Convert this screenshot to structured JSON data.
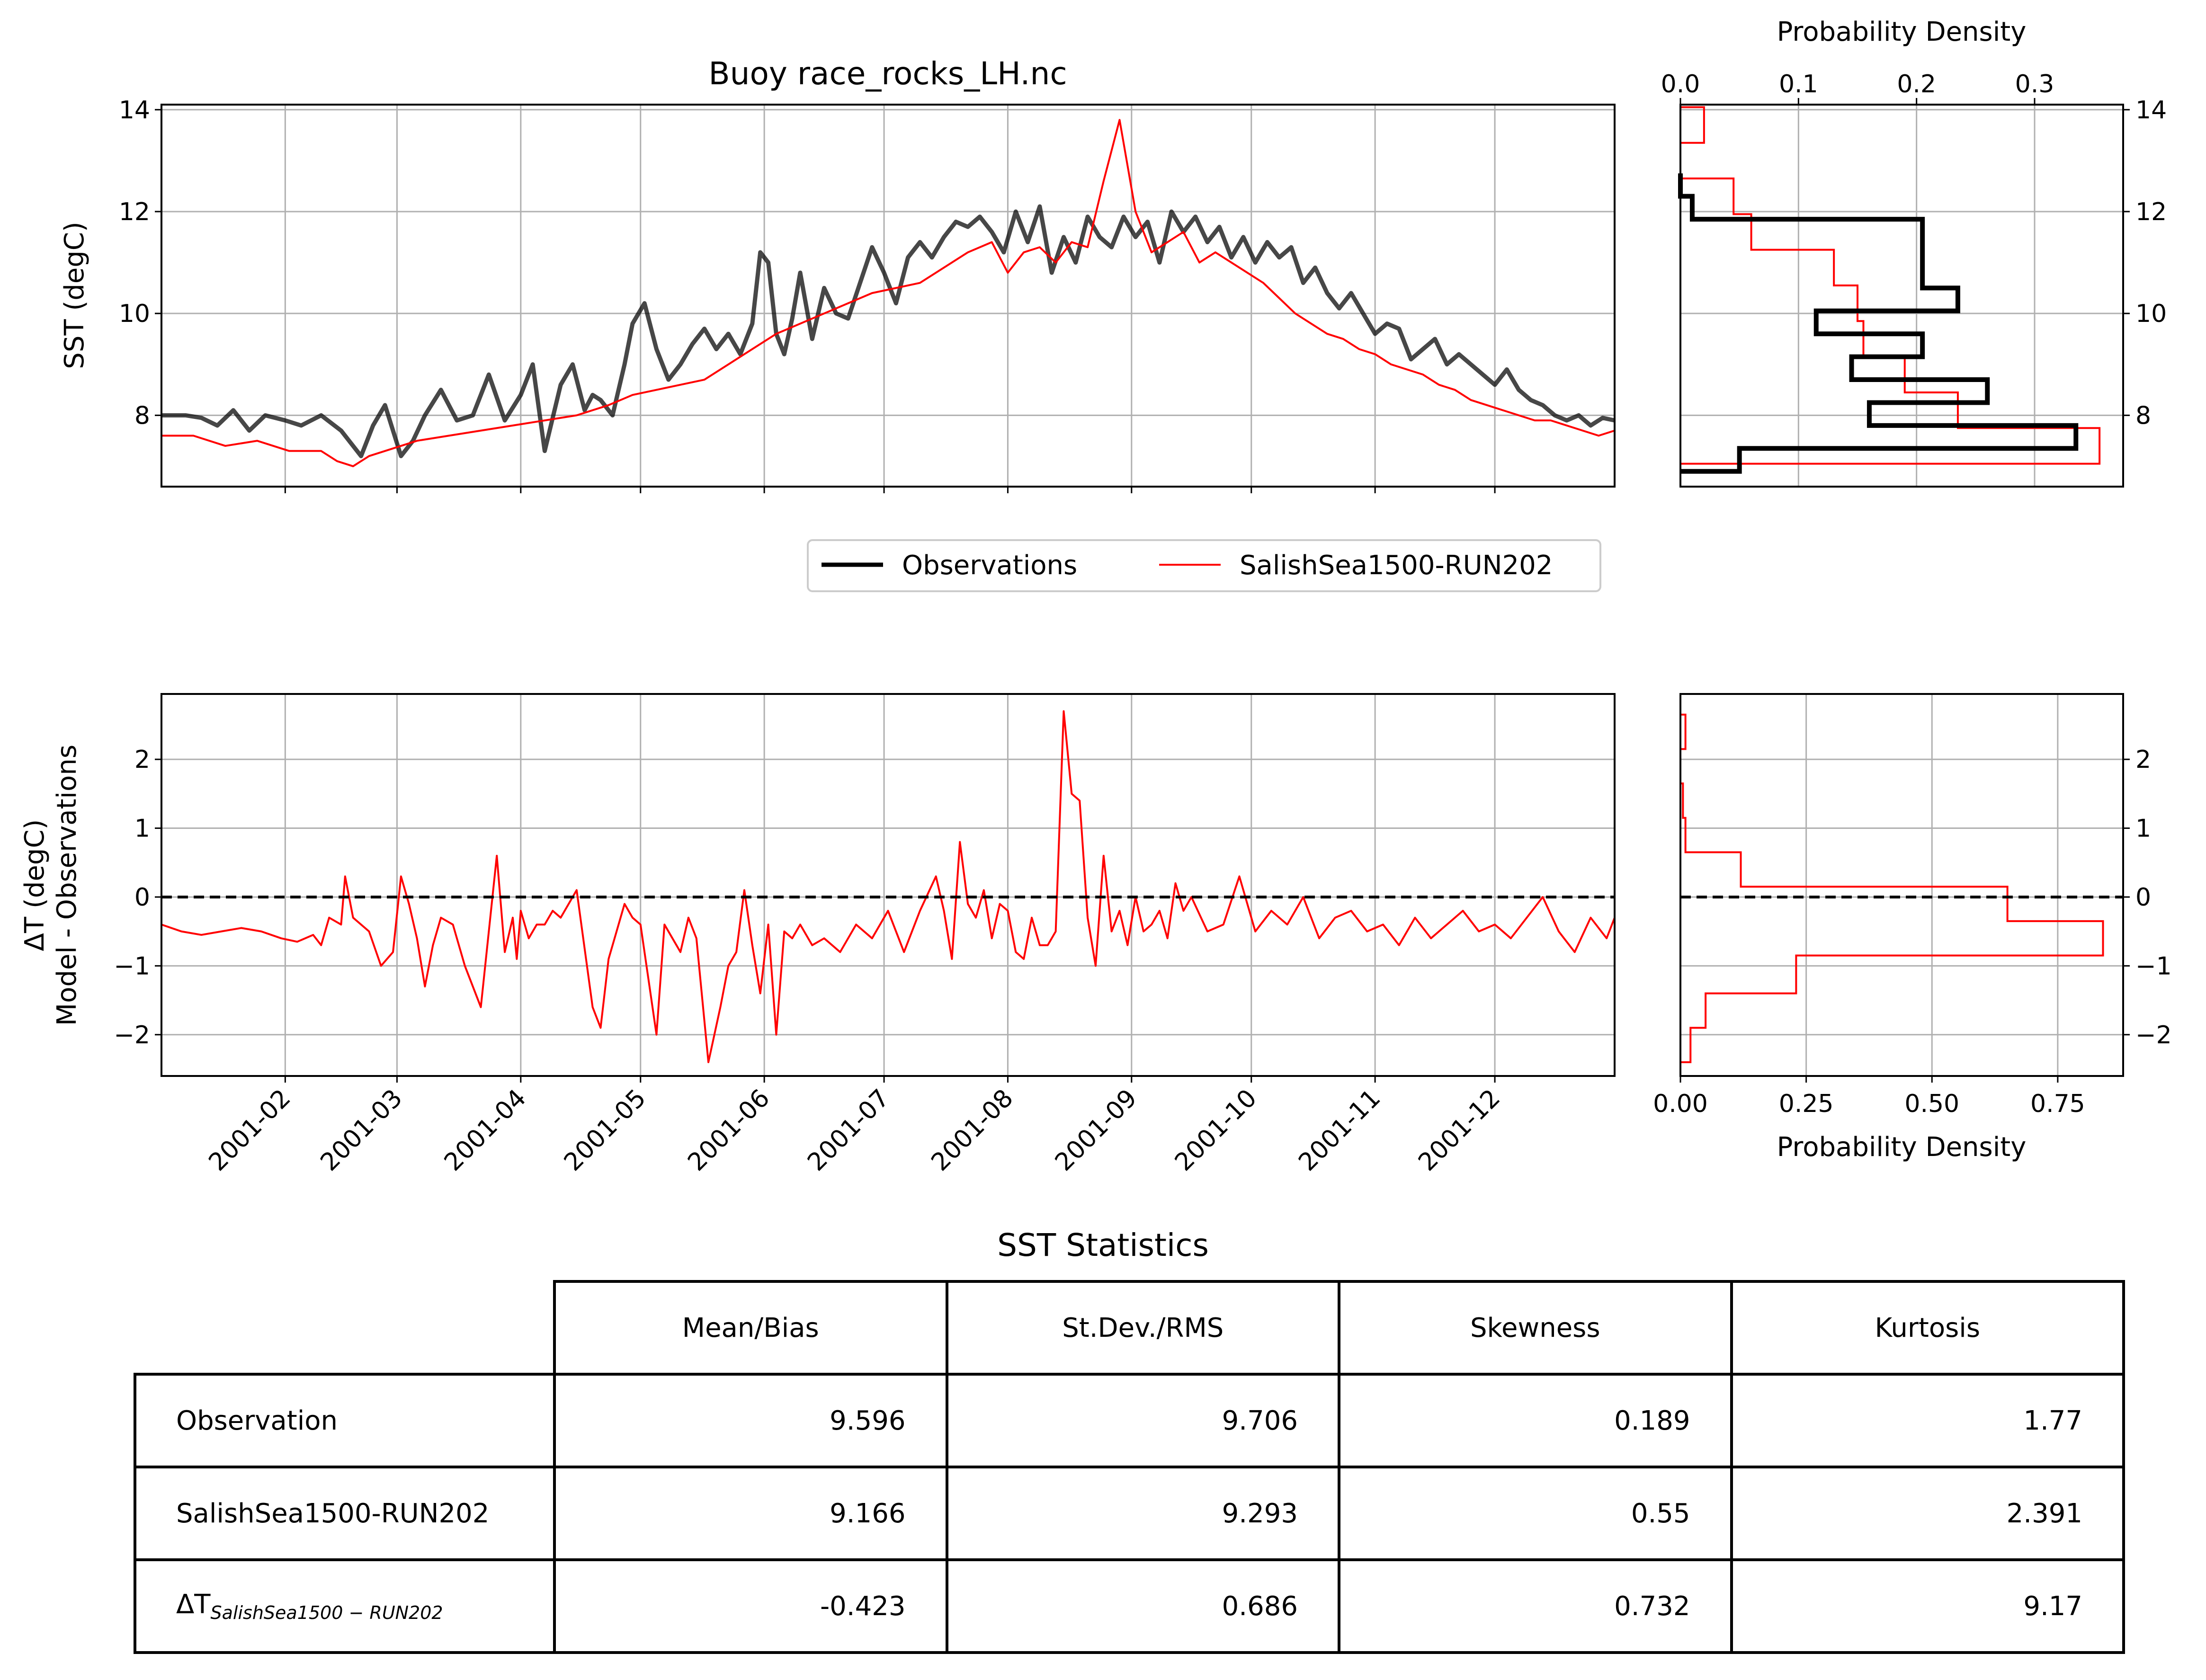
{
  "chart_data": [
    {
      "type": "line",
      "title": "Buoy race_rocks_LH.nc",
      "xlabel": "",
      "ylabel": "SST (degC)",
      "ylim": [
        6.6,
        14.1
      ],
      "yticks": [
        8,
        10,
        12,
        14
      ],
      "xlim": [
        0,
        364
      ],
      "grid": true,
      "legend": "below",
      "series": [
        {
          "name": "Observations",
          "color": "#000000",
          "x": [
            0,
            6,
            10,
            14,
            18,
            22,
            26,
            31,
            35,
            40,
            45,
            50,
            53,
            56,
            60,
            63,
            66,
            70,
            74,
            78,
            82,
            86,
            90,
            93,
            96,
            100,
            103,
            106,
            108,
            110,
            113,
            116,
            118,
            121,
            124,
            127,
            130,
            133,
            136,
            139,
            142,
            145,
            148,
            150,
            152,
            154,
            156,
            158,
            160,
            163,
            166,
            169,
            172,
            175,
            178,
            181,
            184,
            187,
            190,
            193,
            196,
            199,
            202,
            205,
            208,
            211,
            214,
            217,
            220,
            223,
            226,
            229,
            232,
            235,
            238,
            241,
            244,
            247,
            250,
            253,
            256,
            259,
            262,
            265,
            268,
            271,
            274,
            277,
            280,
            283,
            286,
            289,
            292,
            295,
            298,
            301,
            304,
            307,
            310,
            313,
            316,
            319,
            322,
            325,
            328,
            331,
            334,
            337,
            340,
            343,
            346,
            349,
            352,
            355,
            358,
            361,
            364
          ],
          "y": [
            8.0,
            8.0,
            7.95,
            7.8,
            8.1,
            7.7,
            8.0,
            7.9,
            7.8,
            8.0,
            7.7,
            7.2,
            7.8,
            8.2,
            7.2,
            7.5,
            8.0,
            8.5,
            7.9,
            8.0,
            8.8,
            7.9,
            8.4,
            9.0,
            7.3,
            8.6,
            9.0,
            8.1,
            8.4,
            8.3,
            8.0,
            9.0,
            9.8,
            10.2,
            9.3,
            8.7,
            9.0,
            9.4,
            9.7,
            9.3,
            9.6,
            9.2,
            9.8,
            11.2,
            11.0,
            9.6,
            9.2,
            9.9,
            10.8,
            9.5,
            10.5,
            10.0,
            9.9,
            10.6,
            11.3,
            10.8,
            10.2,
            11.1,
            11.4,
            11.1,
            11.5,
            11.8,
            11.7,
            11.9,
            11.6,
            11.2,
            12.0,
            11.4,
            12.1,
            10.8,
            11.5,
            11.0,
            11.9,
            11.5,
            11.3,
            11.9,
            11.5,
            11.8,
            11.0,
            12.0,
            11.6,
            11.9,
            11.4,
            11.7,
            11.1,
            11.5,
            11.0,
            11.4,
            11.1,
            11.3,
            10.6,
            10.9,
            10.4,
            10.1,
            10.4,
            10.0,
            9.6,
            9.8,
            9.7,
            9.1,
            9.3,
            9.5,
            9.0,
            9.2,
            9.0,
            8.8,
            8.6,
            8.9,
            8.5,
            8.3,
            8.2,
            8.0,
            7.9,
            8.0,
            7.8,
            7.95,
            7.9
          ]
        },
        {
          "name": "SalishSea1500-RUN202",
          "color": "#ff0000",
          "x": [
            0,
            8,
            16,
            24,
            32,
            40,
            44,
            48,
            52,
            56,
            64,
            72,
            80,
            88,
            96,
            104,
            112,
            118,
            124,
            130,
            136,
            142,
            148,
            154,
            160,
            166,
            172,
            178,
            184,
            190,
            196,
            202,
            208,
            212,
            216,
            220,
            224,
            228,
            232,
            236,
            240,
            244,
            248,
            252,
            256,
            260,
            264,
            268,
            272,
            276,
            280,
            284,
            288,
            292,
            296,
            300,
            304,
            308,
            312,
            316,
            320,
            324,
            328,
            332,
            336,
            340,
            344,
            348,
            352,
            356,
            360,
            364
          ],
          "y": [
            7.6,
            7.6,
            7.4,
            7.5,
            7.3,
            7.3,
            7.1,
            7.0,
            7.2,
            7.3,
            7.5,
            7.6,
            7.7,
            7.8,
            7.9,
            8.0,
            8.2,
            8.4,
            8.5,
            8.6,
            8.7,
            9.0,
            9.3,
            9.6,
            9.8,
            10.0,
            10.2,
            10.4,
            10.5,
            10.6,
            10.9,
            11.2,
            11.4,
            10.8,
            11.2,
            11.3,
            11.0,
            11.4,
            11.3,
            12.6,
            13.8,
            12.0,
            11.2,
            11.4,
            11.6,
            11.0,
            11.2,
            11.0,
            10.8,
            10.6,
            10.3,
            10.0,
            9.8,
            9.6,
            9.5,
            9.3,
            9.2,
            9.0,
            8.9,
            8.8,
            8.6,
            8.5,
            8.3,
            8.2,
            8.1,
            8.0,
            7.9,
            7.9,
            7.8,
            7.7,
            7.6,
            7.7
          ]
        }
      ],
      "legend_entries": [
        "Observations",
        "SalishSea1500-RUN202"
      ]
    },
    {
      "type": "histogram",
      "title": "",
      "xlabel": "Probability Density",
      "ylabel": "",
      "xlim": [
        0,
        0.375
      ],
      "xticks": [
        0.0,
        0.1,
        0.2,
        0.3
      ],
      "xtick_labels": [
        "0.0",
        "0.1",
        "0.2",
        "0.3"
      ],
      "ylim": [
        6.6,
        14.1
      ],
      "yticks": [
        8,
        10,
        12,
        14
      ],
      "series": [
        {
          "name": "Observations",
          "color": "#000000",
          "bin_edges": [
            6.9,
            7.35,
            7.8,
            8.25,
            8.7,
            9.15,
            9.6,
            10.05,
            10.5,
            10.95,
            11.4,
            11.85,
            12.3,
            12.75
          ],
          "density": [
            0.05,
            0.335,
            0.16,
            0.26,
            0.145,
            0.205,
            0.115,
            0.235,
            0.205,
            0.205,
            0.205,
            0.01,
            0.0
          ]
        },
        {
          "name": "SalishSea1500-RUN202",
          "color": "#ff0000",
          "bin_edges": [
            7.05,
            7.75,
            8.45,
            9.15,
            9.85,
            10.55,
            11.25,
            11.95,
            12.65,
            13.35,
            14.05
          ],
          "density": [
            0.355,
            0.235,
            0.19,
            0.155,
            0.15,
            0.13,
            0.06,
            0.045,
            0.0,
            0.02
          ]
        }
      ]
    },
    {
      "type": "line",
      "title": "",
      "xlabel": "",
      "ylabel": "ΔT (degC)",
      "ylabel2": "Model - Observations",
      "ylim": [
        -2.6,
        2.95
      ],
      "yticks": [
        -2,
        -1,
        0,
        1,
        2
      ],
      "ytick_labels": [
        "−2",
        "−1",
        "0",
        "1",
        "2"
      ],
      "xlim": [
        0,
        364
      ],
      "xtick_positions": [
        31,
        59,
        90,
        120,
        151,
        181,
        212,
        243,
        273,
        304,
        334
      ],
      "xtick_labels": [
        "2001-02",
        "2001-03",
        "2001-04",
        "2001-05",
        "2001-06",
        "2001-07",
        "2001-08",
        "2001-09",
        "2001-10",
        "2001-11",
        "2001-12"
      ],
      "grid": true,
      "zero_line": true,
      "series": [
        {
          "name": "SalishSea1500-RUN202",
          "color": "#ff0000",
          "x": [
            0,
            5,
            10,
            15,
            20,
            25,
            30,
            34,
            38,
            40,
            42,
            45,
            46,
            48,
            52,
            55,
            58,
            60,
            62,
            64,
            66,
            68,
            70,
            73,
            76,
            80,
            84,
            86,
            88,
            89,
            90,
            92,
            94,
            96,
            98,
            100,
            104,
            108,
            110,
            112,
            114,
            116,
            118,
            120,
            124,
            126,
            128,
            130,
            132,
            134,
            137,
            140,
            142,
            144,
            146,
            148,
            150,
            152,
            154,
            156,
            158,
            160,
            163,
            166,
            170,
            174,
            178,
            182,
            186,
            190,
            194,
            196,
            198,
            200,
            202,
            204,
            206,
            208,
            210,
            212,
            214,
            216,
            218,
            220,
            222,
            224,
            226,
            228,
            230,
            232,
            234,
            236,
            238,
            240,
            242,
            244,
            246,
            248,
            250,
            252,
            254,
            256,
            258,
            262,
            266,
            270,
            274,
            278,
            282,
            286,
            290,
            294,
            298,
            302,
            306,
            310,
            314,
            318,
            322,
            326,
            330,
            334,
            338,
            342,
            346,
            350,
            354,
            358,
            362,
            364
          ],
          "y": [
            -0.4,
            -0.5,
            -0.55,
            -0.5,
            -0.45,
            -0.5,
            -0.6,
            -0.65,
            -0.55,
            -0.7,
            -0.3,
            -0.4,
            0.3,
            -0.3,
            -0.5,
            -1.0,
            -0.8,
            0.3,
            -0.1,
            -0.6,
            -1.3,
            -0.7,
            -0.3,
            -0.4,
            -1.0,
            -1.6,
            0.6,
            -0.8,
            -0.3,
            -0.9,
            -0.2,
            -0.6,
            -0.4,
            -0.4,
            -0.2,
            -0.3,
            0.1,
            -1.6,
            -1.9,
            -0.9,
            -0.5,
            -0.1,
            -0.3,
            -0.4,
            -2.0,
            -0.4,
            -0.6,
            -0.8,
            -0.3,
            -0.6,
            -2.4,
            -1.6,
            -1.0,
            -0.8,
            0.1,
            -0.7,
            -1.4,
            -0.4,
            -2.0,
            -0.5,
            -0.6,
            -0.4,
            -0.7,
            -0.6,
            -0.8,
            -0.4,
            -0.6,
            -0.2,
            -0.8,
            -0.2,
            0.3,
            -0.2,
            -0.9,
            0.8,
            -0.1,
            -0.3,
            0.1,
            -0.6,
            -0.1,
            -0.2,
            -0.8,
            -0.9,
            -0.3,
            -0.7,
            -0.7,
            -0.5,
            2.7,
            1.5,
            1.4,
            -0.3,
            -1.0,
            0.6,
            -0.5,
            -0.2,
            -0.7,
            0.0,
            -0.5,
            -0.4,
            -0.2,
            -0.6,
            0.2,
            -0.2,
            0.0,
            -0.5,
            -0.4,
            0.3,
            -0.5,
            -0.2,
            -0.4,
            0.0,
            -0.6,
            -0.3,
            -0.2,
            -0.5,
            -0.4,
            -0.7,
            -0.3,
            -0.6,
            -0.4,
            -0.2,
            -0.5,
            -0.4,
            -0.6,
            -0.3,
            0.0,
            -0.5,
            -0.8,
            -0.3,
            -0.6,
            -0.3
          ]
        }
      ]
    },
    {
      "type": "histogram",
      "title": "",
      "xlabel": "Probability Density",
      "ylabel": "",
      "xlim": [
        0,
        0.88
      ],
      "xticks": [
        0.0,
        0.25,
        0.5,
        0.75
      ],
      "xtick_labels": [
        "0.00",
        "0.25",
        "0.50",
        "0.75"
      ],
      "ylim": [
        -2.6,
        2.95
      ],
      "yticks": [
        -2,
        -1,
        0,
        1,
        2
      ],
      "ytick_labels": [
        "−2",
        "−1",
        "0",
        "1",
        "2"
      ],
      "series": [
        {
          "name": "SalishSea1500-RUN202",
          "color": "#ff0000",
          "bin_edges": [
            -2.4,
            -1.9,
            -1.4,
            -0.85,
            -0.35,
            0.15,
            0.65,
            1.15,
            1.65,
            2.15,
            2.65
          ],
          "density": [
            0.02,
            0.05,
            0.23,
            0.84,
            0.65,
            0.12,
            0.01,
            0.005,
            0.0,
            0.01
          ]
        }
      ],
      "zero_line": true
    }
  ],
  "table": {
    "title": "SST Statistics",
    "headers": [
      "Mean/Bias",
      "St.Dev./RMS",
      "Skewness",
      "Kurtosis"
    ],
    "rows": [
      {
        "label": "Observation",
        "values": [
          "9.596",
          "9.706",
          "0.189",
          "1.77"
        ]
      },
      {
        "label": "SalishSea1500-RUN202",
        "values": [
          "9.166",
          "9.293",
          "0.55",
          "2.391"
        ]
      },
      {
        "label_symbol": "ΔT",
        "label_sub": "SalishSea1500 − RUN202",
        "values": [
          "-0.423",
          "0.686",
          "0.732",
          "9.17"
        ]
      }
    ]
  }
}
